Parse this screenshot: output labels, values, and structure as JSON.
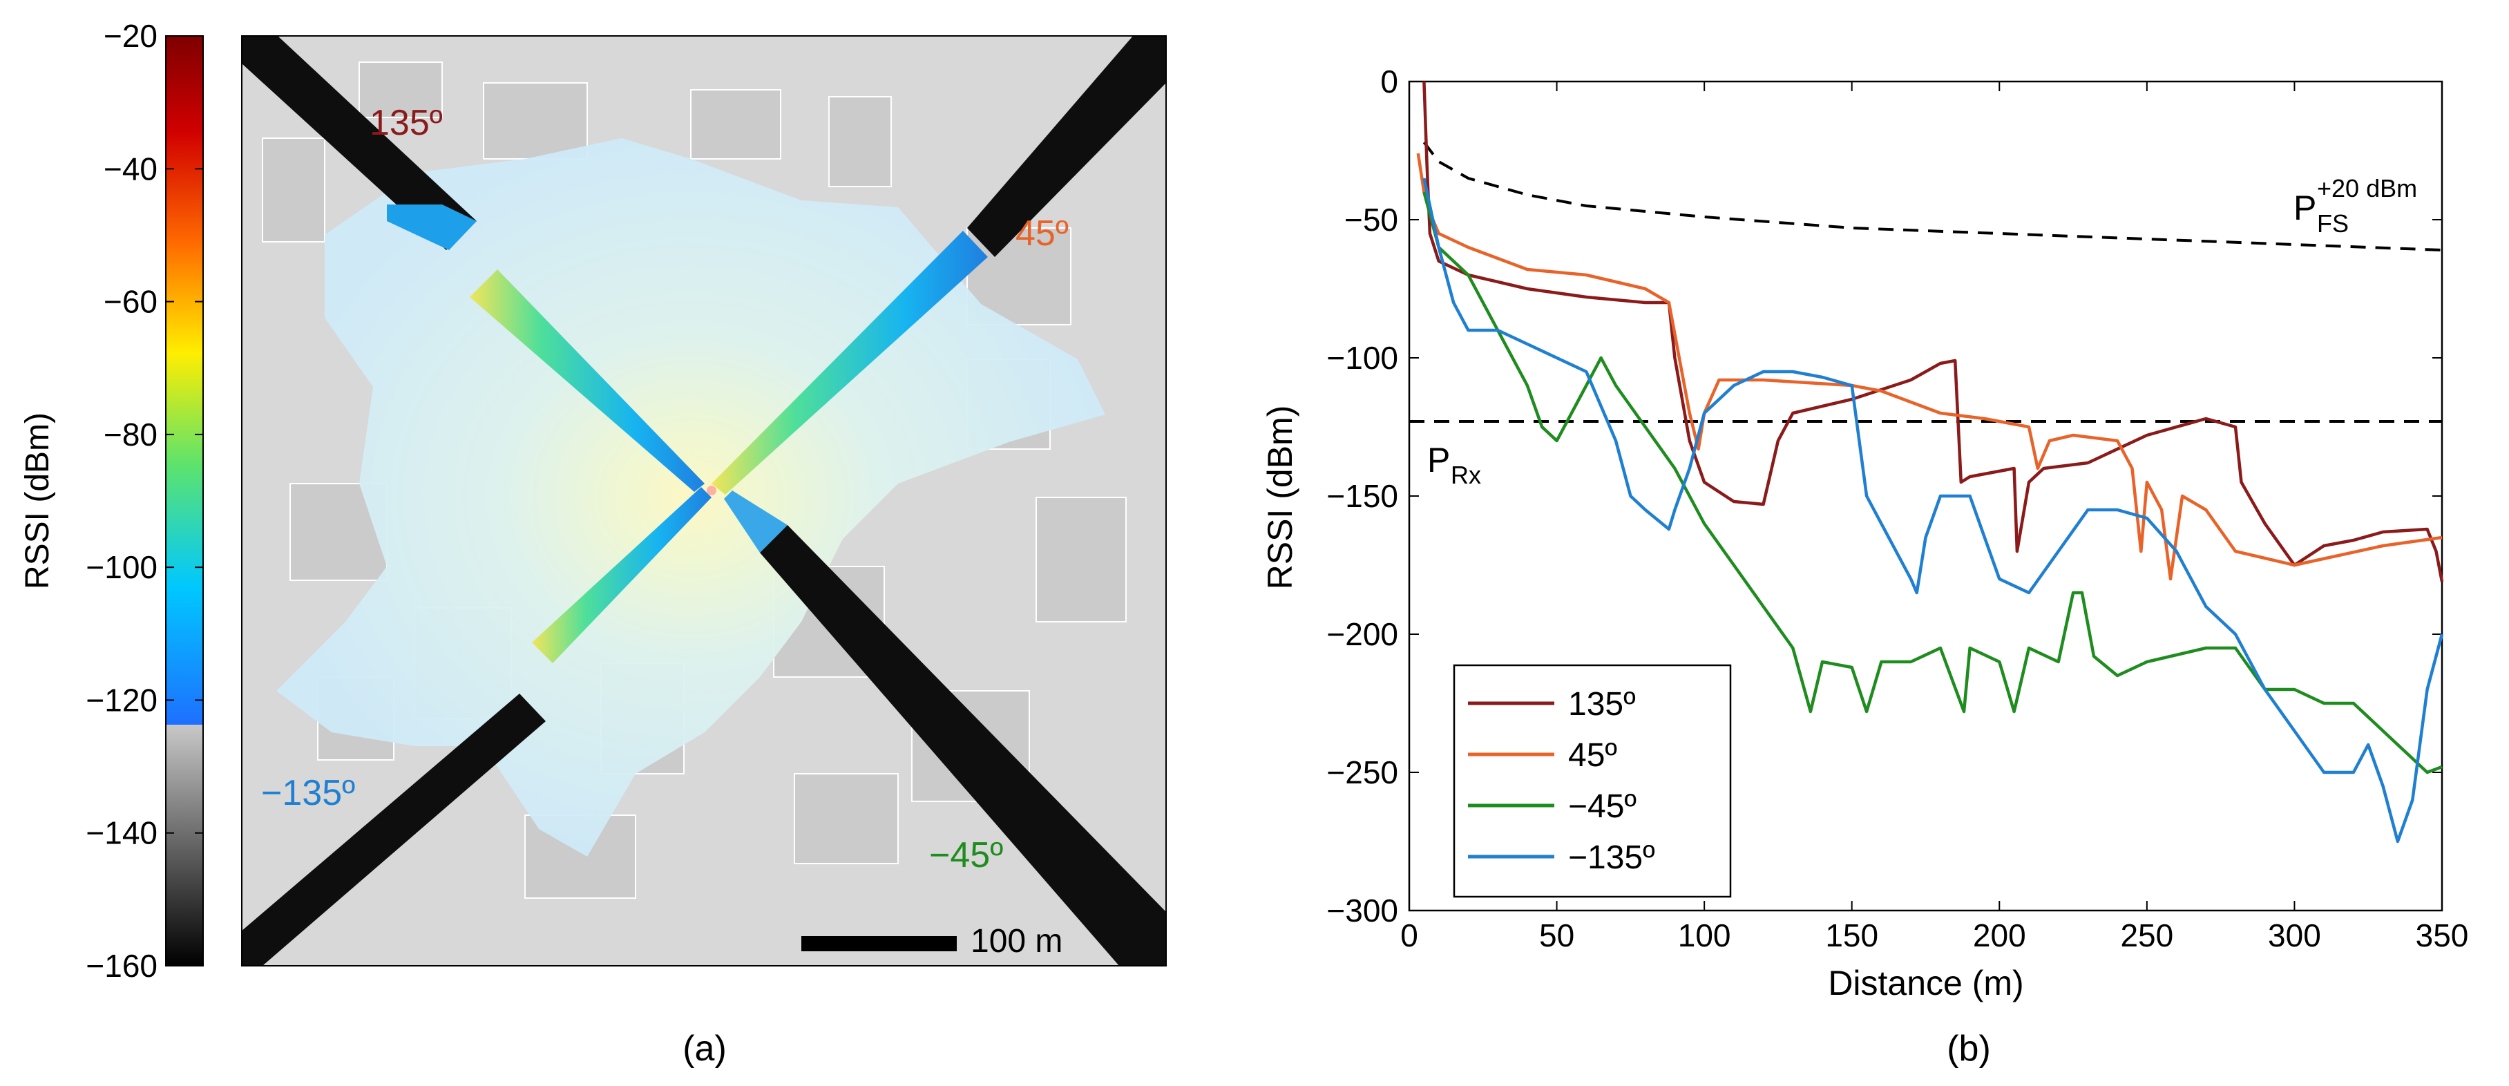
{
  "panel_a": {
    "caption": "(a)",
    "colorbar": {
      "label": "RSSI (dBm)",
      "ticks": [
        -20,
        -40,
        -60,
        -80,
        -100,
        -120,
        -140,
        -160
      ],
      "range": [
        -160,
        -20
      ],
      "threshold": -123
    },
    "angle_labels": [
      {
        "text": "135º",
        "color": "#8b1a1a"
      },
      {
        "text": "45º",
        "color": "#e8632a"
      },
      {
        "text": "−135º",
        "color": "#1f7fd1"
      },
      {
        "text": "−45º",
        "color": "#1e8c1e"
      }
    ],
    "scale_bar": {
      "text": "100 m"
    }
  },
  "panel_b": {
    "caption": "(b)",
    "annotations": {
      "pfs_main": "P",
      "pfs_sup": "+20 dBm",
      "pfs_sub": "FS",
      "prx_main": "P",
      "prx_sub": "Rx"
    }
  },
  "chart_data": {
    "type": "line",
    "xlabel": "Distance (m)",
    "ylabel": "RSSI (dBm)",
    "xlim": [
      0,
      350
    ],
    "ylim": [
      -300,
      0
    ],
    "xticks": [
      0,
      50,
      100,
      150,
      200,
      250,
      300,
      350
    ],
    "yticks": [
      0,
      -50,
      -100,
      -150,
      -200,
      -250,
      -300
    ],
    "legend_position": "bottom-left",
    "reference_lines": [
      {
        "name": "P_FS^+20 dBm",
        "style": "dashed",
        "color": "#000000",
        "x": [
          5,
          10,
          20,
          40,
          60,
          80,
          100,
          150,
          200,
          250,
          300,
          350
        ],
        "y": [
          -22,
          -29,
          -35,
          -41,
          -45,
          -47,
          -49,
          -53,
          -55,
          -57,
          -59,
          -61
        ]
      },
      {
        "name": "P_Rx",
        "style": "dashed",
        "color": "#000000",
        "x": [
          0,
          350
        ],
        "y": [
          -123,
          -123
        ]
      }
    ],
    "series": [
      {
        "name": "135º",
        "color": "#8b1a1a",
        "x": [
          5,
          6,
          7,
          10,
          20,
          40,
          60,
          80,
          88,
          90,
          95,
          100,
          110,
          120,
          125,
          130,
          150,
          170,
          180,
          185,
          187,
          190,
          205,
          206,
          210,
          215,
          230,
          250,
          270,
          280,
          282,
          290,
          300,
          310,
          320,
          330,
          345,
          348,
          350
        ],
        "y": [
          0,
          -30,
          -55,
          -65,
          -70,
          -75,
          -78,
          -80,
          -80,
          -100,
          -130,
          -145,
          -152,
          -153,
          -130,
          -120,
          -115,
          -108,
          -102,
          -101,
          -145,
          -143,
          -140,
          -170,
          -145,
          -140,
          -138,
          -128,
          -122,
          -125,
          -145,
          -160,
          -175,
          -168,
          -166,
          -163,
          -162,
          -170,
          -181
        ]
      },
      {
        "name": "45º",
        "color": "#e8632a",
        "x": [
          3,
          5,
          8,
          10,
          20,
          40,
          60,
          80,
          88,
          95,
          98,
          100,
          105,
          120,
          150,
          160,
          180,
          195,
          210,
          213,
          217,
          225,
          240,
          245,
          248,
          250,
          255,
          258,
          262,
          270,
          280,
          300,
          330,
          350
        ],
        "y": [
          -26,
          -40,
          -50,
          -55,
          -60,
          -68,
          -70,
          -75,
          -80,
          -120,
          -133,
          -120,
          -108,
          -108,
          -110,
          -112,
          -120,
          -122,
          -125,
          -140,
          -130,
          -128,
          -130,
          -140,
          -170,
          -145,
          -155,
          -180,
          -150,
          -155,
          -170,
          -175,
          -168,
          -165
        ]
      },
      {
        "name": "−45º",
        "color": "#1e8c1e",
        "x": [
          5,
          10,
          20,
          30,
          40,
          45,
          50,
          60,
          65,
          70,
          80,
          90,
          100,
          110,
          120,
          130,
          136,
          140,
          150,
          155,
          160,
          170,
          180,
          188,
          190,
          200,
          205,
          210,
          220,
          225,
          228,
          232,
          240,
          250,
          270,
          280,
          290,
          300,
          310,
          320,
          330,
          340,
          345,
          350
        ],
        "y": [
          -40,
          -60,
          -70,
          -90,
          -110,
          -125,
          -130,
          -110,
          -100,
          -110,
          -125,
          -140,
          -160,
          -175,
          -190,
          -205,
          -228,
          -210,
          -212,
          -228,
          -210,
          -210,
          -205,
          -228,
          -205,
          -210,
          -228,
          -205,
          -210,
          -185,
          -185,
          -208,
          -215,
          -210,
          -205,
          -205,
          -220,
          -220,
          -225,
          -225,
          -235,
          -245,
          -250,
          -248
        ]
      },
      {
        "name": "−135º",
        "color": "#1f7fd1",
        "x": [
          5,
          10,
          15,
          20,
          30,
          40,
          50,
          60,
          70,
          75,
          80,
          88,
          90,
          95,
          100,
          110,
          120,
          130,
          140,
          150,
          155,
          160,
          170,
          172,
          175,
          180,
          190,
          195,
          200,
          210,
          220,
          230,
          240,
          250,
          260,
          265,
          270,
          280,
          290,
          300,
          310,
          320,
          325,
          330,
          335,
          340,
          345,
          350
        ],
        "y": [
          -35,
          -60,
          -80,
          -90,
          -90,
          -95,
          -100,
          -105,
          -130,
          -150,
          -155,
          -162,
          -155,
          -140,
          -120,
          -110,
          -105,
          -105,
          -107,
          -110,
          -150,
          -160,
          -180,
          -185,
          -165,
          -150,
          -150,
          -165,
          -180,
          -185,
          -170,
          -155,
          -155,
          -158,
          -170,
          -180,
          -190,
          -200,
          -220,
          -235,
          -250,
          -250,
          -240,
          -255,
          -275,
          -260,
          -220,
          -200
        ]
      }
    ]
  }
}
